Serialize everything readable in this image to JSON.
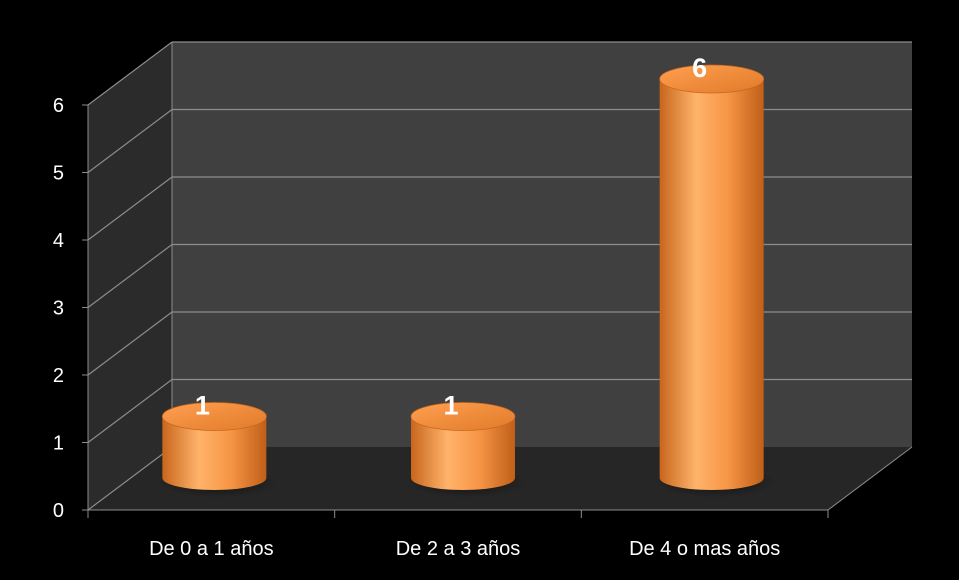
{
  "chart_data": {
    "type": "bar",
    "style": "3d-cylinder",
    "categories": [
      "De 0 a 1 años",
      "De 2 a 3 años",
      "De 4 o mas años"
    ],
    "values": [
      1,
      1,
      6
    ],
    "data_labels": [
      "1",
      "1",
      "6"
    ],
    "y_ticks": [
      "0",
      "1",
      "2",
      "3",
      "4",
      "5",
      "6"
    ],
    "ylim": [
      0,
      6
    ],
    "grid": true,
    "legend": "none",
    "title": "",
    "xlabel": "",
    "ylabel": ""
  },
  "colors": {
    "background": "#000000",
    "wall": "#404040",
    "side_wall": "#2b2b2b",
    "floor": "#262626",
    "gridline": "#8c8c8c",
    "bar": "#f79646",
    "bar_light": "#ffc080",
    "bar_dark": "#c8661c"
  }
}
